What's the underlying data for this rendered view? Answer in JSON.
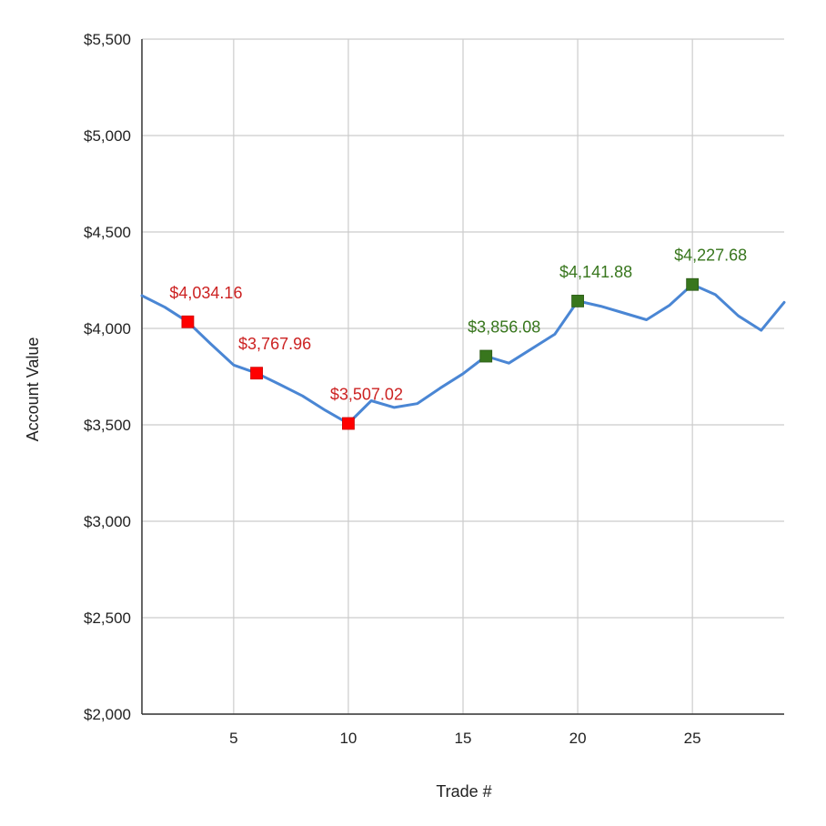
{
  "chart_data": {
    "type": "line",
    "title": "",
    "xlabel": "Trade #",
    "ylabel": "Account Value",
    "xlim": [
      1,
      29
    ],
    "ylim": [
      2000,
      5500
    ],
    "x_ticks": [
      5,
      10,
      15,
      20,
      25
    ],
    "y_ticks": [
      {
        "value": 2000,
        "label": "$2,000"
      },
      {
        "value": 2500,
        "label": "$2,500"
      },
      {
        "value": 3000,
        "label": "$3,000"
      },
      {
        "value": 3500,
        "label": "$3,500"
      },
      {
        "value": 4000,
        "label": "$4,000"
      },
      {
        "value": 4500,
        "label": "$4,500"
      },
      {
        "value": 5000,
        "label": "$5,000"
      },
      {
        "value": 5500,
        "label": "$5,500"
      }
    ],
    "grid": true,
    "line_color": "#4a86d4",
    "series": [
      {
        "x": [
          1,
          2,
          3,
          4,
          5,
          6,
          7,
          8,
          9,
          10,
          11,
          12,
          13,
          14,
          15,
          16,
          17,
          18,
          19,
          20,
          21,
          22,
          23,
          24,
          25,
          26,
          27,
          28,
          29
        ],
        "values": [
          4170,
          4110,
          4034.16,
          3920,
          3810,
          3767.96,
          3710,
          3650,
          3575,
          3507.02,
          3625,
          3590,
          3610,
          3690,
          3765,
          3856.08,
          3820,
          3895,
          3970,
          4141.88,
          4115,
          4080,
          4045,
          4120,
          4227.68,
          4175,
          4065,
          3990,
          4135
        ]
      }
    ],
    "markers": [
      {
        "x": 3,
        "y": 4034.16,
        "label": "$4,034.16",
        "color": "#ff0000",
        "label_color": "#cc2222"
      },
      {
        "x": 6,
        "y": 3767.96,
        "label": "$3,767.96",
        "color": "#ff0000",
        "label_color": "#cc2222"
      },
      {
        "x": 10,
        "y": 3507.02,
        "label": "$3,507.02",
        "color": "#ff0000",
        "label_color": "#cc2222"
      },
      {
        "x": 16,
        "y": 3856.08,
        "label": "$3,856.08",
        "color": "#38761d",
        "label_color": "#38761d"
      },
      {
        "x": 20,
        "y": 4141.88,
        "label": "$4,141.88",
        "color": "#38761d",
        "label_color": "#38761d"
      },
      {
        "x": 25,
        "y": 4227.68,
        "label": "$4,227.68",
        "color": "#38761d",
        "label_color": "#38761d"
      }
    ]
  }
}
